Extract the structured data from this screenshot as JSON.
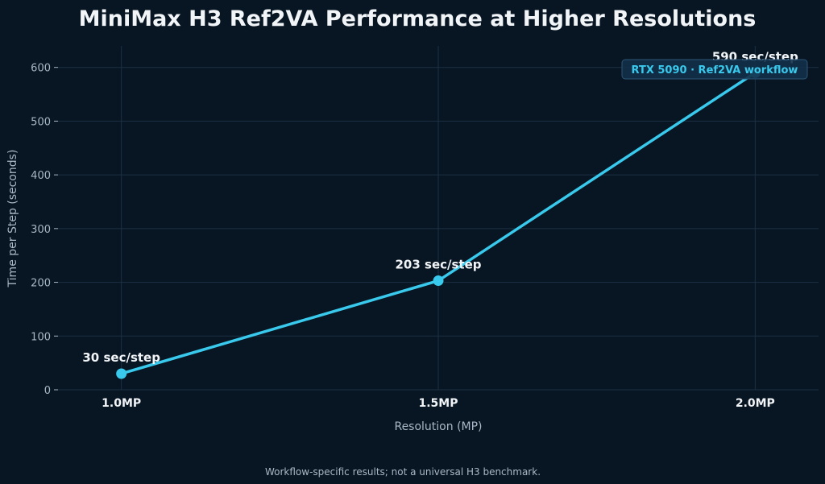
{
  "colors": {
    "background": "#081522",
    "line": "#39c9ec",
    "grid": "#1c3145",
    "tick_text": "#a9b8c6",
    "title_text": "#f2f5f8",
    "badge_bg": "#13304a",
    "badge_border": "#2c5577"
  },
  "chart_data": {
    "type": "line",
    "title": "MiniMax H3 Ref2VA Performance at Higher Resolutions",
    "xlabel": "Resolution (MP)",
    "ylabel": "Time per Step (seconds)",
    "categories": [
      "1.0MP",
      "1.5MP",
      "2.0MP"
    ],
    "x": [
      1.0,
      1.5,
      2.0
    ],
    "series": [
      {
        "values": [
          30,
          203,
          590
        ],
        "labels": [
          "30 sec/step",
          "203 sec/step",
          "590 sec/step"
        ]
      }
    ],
    "ylim": [
      0,
      640
    ],
    "xlim": [
      0.9,
      2.1
    ],
    "yticks": [
      0,
      100,
      200,
      300,
      400,
      500,
      600
    ],
    "grid": true,
    "badge": "RTX 5090 · Ref2VA workflow",
    "footnote": "Workflow-specific results; not a universal H3 benchmark."
  }
}
